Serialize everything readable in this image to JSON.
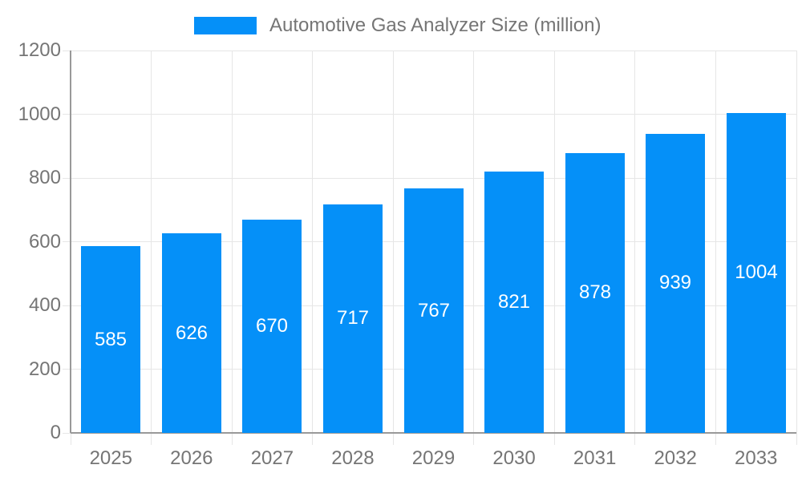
{
  "chart_data": {
    "type": "bar",
    "title": "Automotive Gas Analyzer Size (million)",
    "legend_entries": [
      "Automotive Gas Analyzer Size (million)"
    ],
    "legend_position": "top-center",
    "categories": [
      "2025",
      "2026",
      "2027",
      "2028",
      "2029",
      "2030",
      "2031",
      "2032",
      "2033"
    ],
    "values": [
      585,
      626,
      670,
      717,
      767,
      821,
      878,
      939,
      1004
    ],
    "value_labels_shown": true,
    "value_label_placement": "inside-center",
    "xlabel": "",
    "ylabel": "",
    "ylim": [
      0,
      1200
    ],
    "ytick_step": 200,
    "ytick_labels": [
      "0",
      "200",
      "400",
      "600",
      "800",
      "1000",
      "1200"
    ],
    "grid": true
  },
  "colors": {
    "bar": "#0590f8",
    "value_label_text": "#ffffff",
    "axis_text": "#757575",
    "legend_text": "#757575",
    "grid_line": "#e6e6e6",
    "axis_line": "#999999",
    "background": "#ffffff"
  }
}
